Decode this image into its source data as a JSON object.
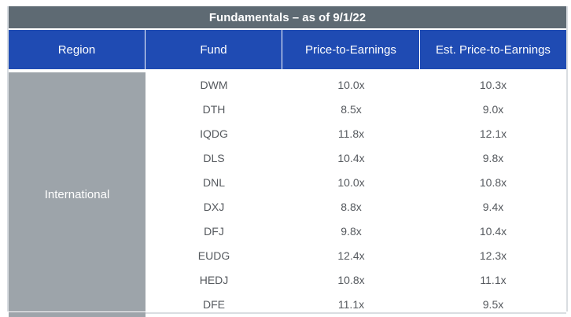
{
  "table": {
    "title": "Fundamentals – as of 9/1/22",
    "headers": {
      "region": "Region",
      "fund": "Fund",
      "pe": "Price-to-Earnings",
      "est_pe": "Est. Price-to-Earnings"
    },
    "region": "International",
    "rows": [
      {
        "fund": "DWM",
        "pe": "10.0x",
        "est_pe": "10.3x"
      },
      {
        "fund": "DTH",
        "pe": "8.5x",
        "est_pe": "9.0x"
      },
      {
        "fund": "IQDG",
        "pe": "11.8x",
        "est_pe": "12.1x"
      },
      {
        "fund": "DLS",
        "pe": "10.4x",
        "est_pe": "9.8x"
      },
      {
        "fund": "DNL",
        "pe": "10.0x",
        "est_pe": "10.8x"
      },
      {
        "fund": "DXJ",
        "pe": "8.8x",
        "est_pe": "9.4x"
      },
      {
        "fund": "DFJ",
        "pe": "9.8x",
        "est_pe": "10.4x"
      },
      {
        "fund": "EUDG",
        "pe": "12.4x",
        "est_pe": "12.3x"
      },
      {
        "fund": "HEDJ",
        "pe": "10.8x",
        "est_pe": "11.1x"
      },
      {
        "fund": "DFE",
        "pe": "11.1x",
        "est_pe": "9.5x"
      }
    ]
  },
  "colors": {
    "title_bg": "#5e6a73",
    "header_bg": "#1f4bb3",
    "region_bg": "#9da4aa",
    "cell_text": "#55595e"
  }
}
